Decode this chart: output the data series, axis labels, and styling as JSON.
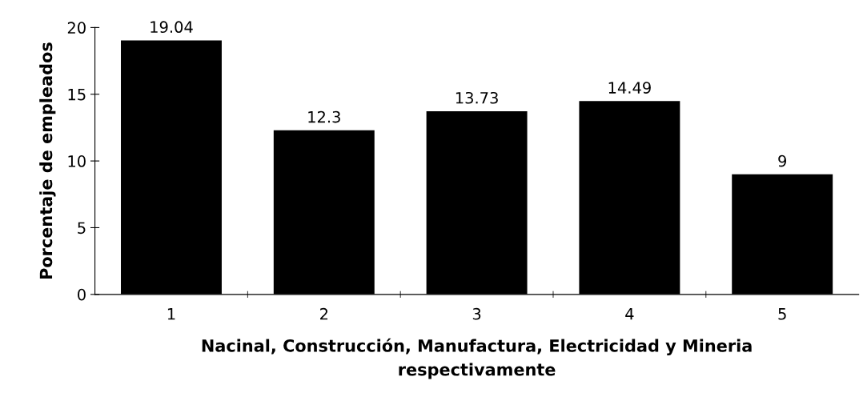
{
  "chart_data": {
    "type": "bar",
    "xlabel": "Nacinal, Construcción, Manufactura, Electricidad y Mineria\nrespectivamente",
    "ylabel": "Porcentaje de empleados",
    "categories": [
      "1",
      "2",
      "3",
      "4",
      "5"
    ],
    "values": [
      19.04,
      12.3,
      13.73,
      14.49,
      9
    ],
    "color": "#000000",
    "ylim": [
      0,
      20
    ],
    "yticks": [
      0,
      5,
      10,
      15,
      20
    ],
    "data_labels": true,
    "grid": false,
    "legend": false
  }
}
